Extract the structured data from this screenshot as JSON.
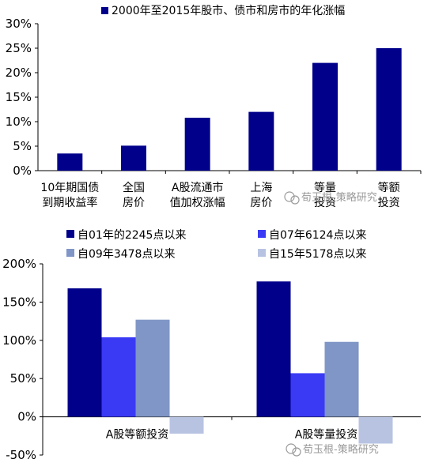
{
  "chart_data": [
    {
      "type": "bar",
      "legend": "2000年至2015年股市、债市和房市的年化涨幅",
      "categories": [
        [
          "10年期国债",
          "到期收益率"
        ],
        [
          "全国",
          "房价"
        ],
        [
          "A股流通市",
          "值加权涨幅"
        ],
        [
          "上海",
          "房价"
        ],
        [
          "等量",
          "投资"
        ],
        [
          "等额",
          "投资"
        ]
      ],
      "values": [
        0.035,
        0.051,
        0.108,
        0.12,
        0.22,
        0.25
      ],
      "ylim": [
        0,
        0.3
      ],
      "yticks": [
        "0%",
        "5%",
        "10%",
        "15%",
        "20%",
        "25%",
        "30%"
      ],
      "grid": false,
      "color": "#00008B"
    },
    {
      "type": "bar",
      "categories": [
        "A股等额投资",
        "A股等量投资"
      ],
      "series": [
        {
          "name": "自01年的2245点以来",
          "values": [
            1.68,
            1.77
          ],
          "color": "#00008B"
        },
        {
          "name": "自07年6124点以来",
          "values": [
            1.04,
            0.57
          ],
          "color": "#3A3AF5"
        },
        {
          "name": "自09年3478点以来",
          "values": [
            1.27,
            0.98
          ],
          "color": "#7F96C6"
        },
        {
          "name": "自15年5178点以来",
          "values": [
            -0.22,
            -0.35
          ],
          "color": "#B8C3E2"
        }
      ],
      "legend_labels": [
        "自01年的2245点以来",
        "自07年6124点以来",
        "自09年3478点以来",
        "自15年5178点以来"
      ],
      "ylim": [
        -0.5,
        2.0
      ],
      "yticks": [
        "-50%",
        "0%",
        "50%",
        "100%",
        "150%",
        "200%"
      ],
      "grid": false
    }
  ],
  "watermark": "荀玉根-策略研究"
}
